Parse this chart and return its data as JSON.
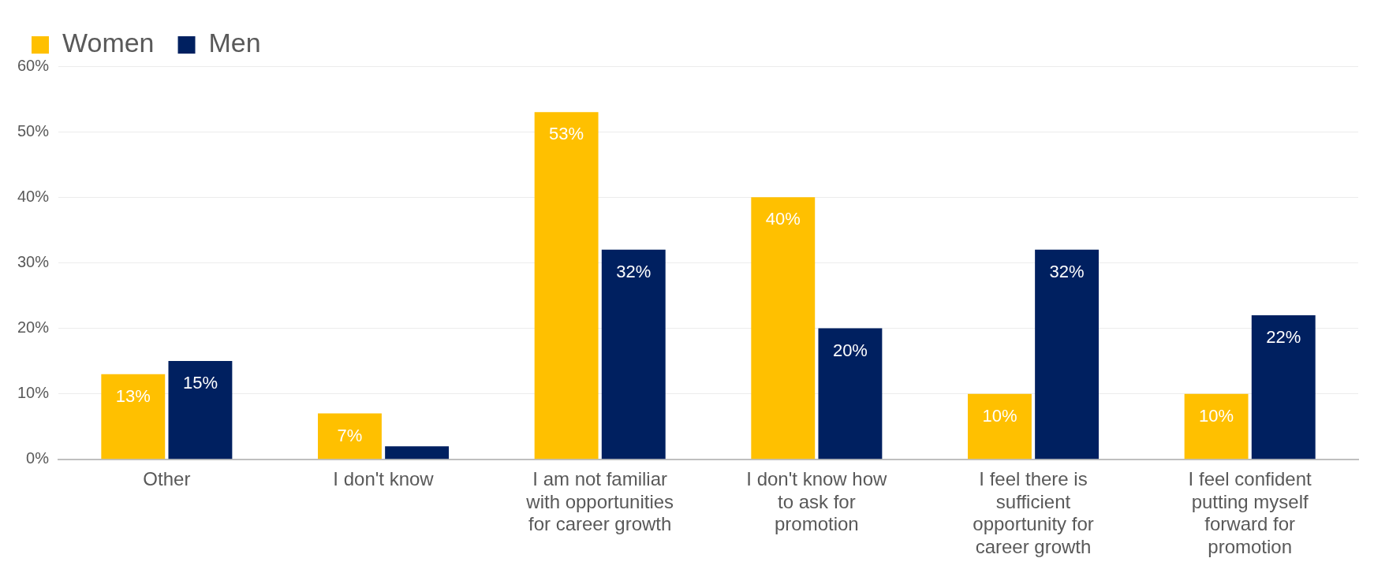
{
  "chart_data": {
    "type": "bar",
    "categories": [
      "Other",
      "I don't know",
      "I am not familiar with opportunities for career growth",
      "I don't know how to ask for promotion",
      "I feel there is sufficient opportunity for career growth",
      "I feel confident putting myself forward for promotion"
    ],
    "series": [
      {
        "name": "Women",
        "color": "#ffc000",
        "values": [
          13,
          7,
          53,
          40,
          10,
          10
        ],
        "value_labels": [
          "13%",
          "7%",
          "53%",
          "40%",
          "10%",
          "10%"
        ]
      },
      {
        "name": "Men",
        "color": "#002060",
        "values": [
          15,
          2,
          32,
          20,
          32,
          22
        ],
        "value_labels": [
          "15%",
          null,
          "32%",
          "20%",
          "32%",
          "22%"
        ]
      }
    ],
    "ylim": [
      0,
      60
    ],
    "yticks": [
      {
        "value": 0,
        "label": "0%"
      },
      {
        "value": 10,
        "label": "10%"
      },
      {
        "value": 20,
        "label": "20%"
      },
      {
        "value": 30,
        "label": "30%"
      },
      {
        "value": 40,
        "label": "40%"
      },
      {
        "value": 50,
        "label": "50%"
      },
      {
        "value": 60,
        "label": "60%"
      }
    ],
    "grid": "y",
    "legend": "top left"
  }
}
